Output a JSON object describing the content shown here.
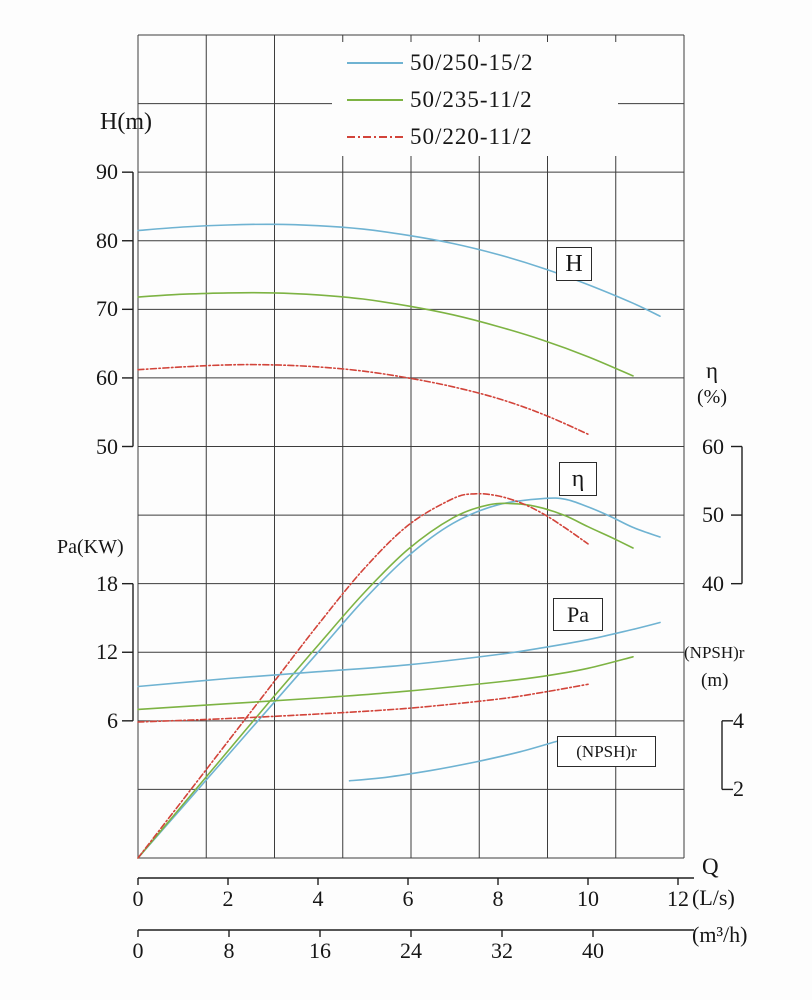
{
  "chart_data": {
    "type": "line",
    "title": "",
    "x_axis": {
      "name": "Q",
      "unit_primary": "(L/s)",
      "unit_secondary": "(m³/h)",
      "ticks_ls": [
        0,
        2,
        4,
        6,
        8,
        10,
        12
      ],
      "ticks_m3h": [
        0,
        8,
        16,
        24,
        32,
        40
      ],
      "range_ls": [
        0,
        12.2
      ]
    },
    "y_axes": {
      "H": {
        "label": "H(m)",
        "ticks": [
          90,
          80,
          70,
          60,
          50
        ]
      },
      "Pa": {
        "label": "Pa(KW)",
        "ticks": [
          18,
          12,
          6
        ]
      },
      "eta": {
        "symbol": "η",
        "unit": "(%)",
        "ticks": [
          60,
          50,
          40
        ]
      },
      "npshr": {
        "label": "(NPSH)r",
        "unit": "(m)",
        "ticks": [
          4,
          2
        ]
      }
    },
    "curve_tags": {
      "H": "H",
      "eta": "η",
      "Pa": "Pa",
      "npshr": "(NPSH)r"
    },
    "colors": {
      "grid": "#3d3d3d",
      "axis": "#1f1f1f",
      "text": "#161616"
    },
    "legend": [
      {
        "label": "50/250-15/2",
        "color": "#6fb3d2",
        "dash": "solid"
      },
      {
        "label": "50/235-11/2",
        "color": "#7db343",
        "dash": "solid"
      },
      {
        "label": "50/220-11/2",
        "color": "#d2443a",
        "dash": "dashdot"
      }
    ],
    "families": [
      {
        "key": "H",
        "quantity": "Head H (m) vs Q (L/s)",
        "curves": [
          {
            "series": "50/250-15/2",
            "points": [
              [
                0,
                81.5
              ],
              [
                1,
                82.0
              ],
              [
                2,
                82.3
              ],
              [
                3,
                82.4
              ],
              [
                4,
                82.2
              ],
              [
                5,
                81.7
              ],
              [
                6,
                80.8
              ],
              [
                7,
                79.6
              ],
              [
                8,
                78.0
              ],
              [
                9,
                76.0
              ],
              [
                10,
                73.6
              ],
              [
                11,
                70.9
              ],
              [
                11.6,
                69.0
              ]
            ]
          },
          {
            "series": "50/235-11/2",
            "points": [
              [
                0,
                71.8
              ],
              [
                1,
                72.2
              ],
              [
                2,
                72.4
              ],
              [
                3,
                72.4
              ],
              [
                4,
                72.1
              ],
              [
                5,
                71.5
              ],
              [
                6,
                70.5
              ],
              [
                7,
                69.2
              ],
              [
                8,
                67.5
              ],
              [
                9,
                65.5
              ],
              [
                10,
                63.1
              ],
              [
                11,
                60.3
              ]
            ]
          },
          {
            "series": "50/220-11/2",
            "points": [
              [
                0,
                61.2
              ],
              [
                1,
                61.6
              ],
              [
                2,
                61.9
              ],
              [
                3,
                61.9
              ],
              [
                4,
                61.6
              ],
              [
                5,
                61.0
              ],
              [
                6,
                60.0
              ],
              [
                7,
                58.7
              ],
              [
                8,
                57.0
              ],
              [
                9,
                54.7
              ],
              [
                10,
                51.8
              ]
            ]
          }
        ]
      },
      {
        "key": "eta",
        "quantity": "Efficiency η (%) vs Q (L/s)",
        "curves": [
          {
            "series": "50/250-15/2",
            "points": [
              [
                0,
                0
              ],
              [
                1,
                7.5
              ],
              [
                2,
                15
              ],
              [
                3,
                22.5
              ],
              [
                4,
                30
              ],
              [
                5,
                37.5
              ],
              [
                6,
                44
              ],
              [
                7,
                48.8
              ],
              [
                8,
                51.5
              ],
              [
                9,
                52.4
              ],
              [
                9.5,
                52.3
              ],
              [
                10,
                51.2
              ],
              [
                10.5,
                49.8
              ],
              [
                11,
                48.2
              ],
              [
                11.6,
                46.8
              ]
            ]
          },
          {
            "series": "50/235-11/2",
            "points": [
              [
                0,
                0
              ],
              [
                1,
                7.8
              ],
              [
                2,
                15.6
              ],
              [
                3,
                23.4
              ],
              [
                4,
                31
              ],
              [
                5,
                38.5
              ],
              [
                6,
                45
              ],
              [
                7,
                49.6
              ],
              [
                7.8,
                51.5
              ],
              [
                8.5,
                51.6
              ],
              [
                9,
                51.0
              ],
              [
                9.5,
                49.9
              ],
              [
                10,
                48.3
              ],
              [
                10.5,
                46.8
              ],
              [
                11,
                45.2
              ]
            ]
          },
          {
            "series": "50/220-11/2",
            "points": [
              [
                0,
                0
              ],
              [
                1,
                8.5
              ],
              [
                2,
                17
              ],
              [
                3,
                25.5
              ],
              [
                4,
                34
              ],
              [
                5,
                42
              ],
              [
                6,
                48.5
              ],
              [
                7,
                52.4
              ],
              [
                7.5,
                53.1
              ],
              [
                8,
                52.8
              ],
              [
                8.5,
                51.8
              ],
              [
                9,
                50.2
              ],
              [
                9.5,
                48.1
              ],
              [
                10,
                45.8
              ]
            ]
          }
        ]
      },
      {
        "key": "Pa",
        "quantity": "Shaft power Pa (KW) vs Q (L/s)",
        "curves": [
          {
            "series": "50/250-15/2",
            "points": [
              [
                0,
                9.0
              ],
              [
                2,
                9.7
              ],
              [
                4,
                10.3
              ],
              [
                6,
                10.9
              ],
              [
                8,
                11.8
              ],
              [
                9,
                12.4
              ],
              [
                10,
                13.1
              ],
              [
                11,
                14.0
              ],
              [
                11.6,
                14.6
              ]
            ]
          },
          {
            "series": "50/235-11/2",
            "points": [
              [
                0,
                7.0
              ],
              [
                2,
                7.5
              ],
              [
                4,
                8.0
              ],
              [
                6,
                8.6
              ],
              [
                8,
                9.4
              ],
              [
                9,
                9.9
              ],
              [
                10,
                10.6
              ],
              [
                11,
                11.6
              ]
            ]
          },
          {
            "series": "50/220-11/2",
            "points": [
              [
                0,
                5.9
              ],
              [
                2,
                6.2
              ],
              [
                4,
                6.6
              ],
              [
                6,
                7.1
              ],
              [
                8,
                7.9
              ],
              [
                9,
                8.5
              ],
              [
                10,
                9.2
              ]
            ]
          }
        ]
      },
      {
        "key": "npshr",
        "quantity": "(NPSH)r (m) vs Q (L/s)",
        "curves": [
          {
            "series": "50/250-15/2",
            "points": [
              [
                4.7,
                2.25
              ],
              [
                5.5,
                2.35
              ],
              [
                6.5,
                2.55
              ],
              [
                7.5,
                2.8
              ],
              [
                8.5,
                3.1
              ],
              [
                9.3,
                3.4
              ]
            ]
          }
        ]
      }
    ]
  }
}
